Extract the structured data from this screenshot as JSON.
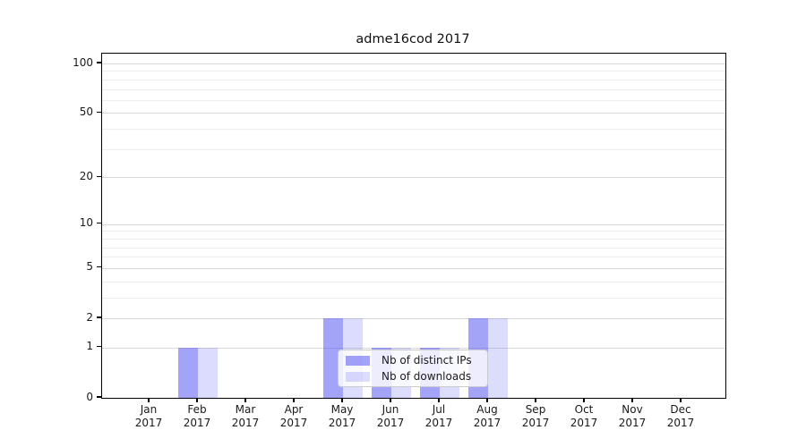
{
  "chart_data": {
    "type": "bar",
    "title": "adme16cod 2017",
    "categories": [
      "Jan",
      "Feb",
      "Mar",
      "Apr",
      "May",
      "Jun",
      "Jul",
      "Aug",
      "Sep",
      "Oct",
      "Nov",
      "Dec"
    ],
    "x_year": "2017",
    "series": [
      {
        "name": "Nb of distinct IPs",
        "color": "rgba(68,68,238,0.49)",
        "values": [
          0,
          1,
          0,
          0,
          2,
          1,
          1,
          2,
          0,
          0,
          0,
          0
        ]
      },
      {
        "name": "Nb of downloads",
        "color": "rgba(68,68,238,0.19)",
        "values": [
          0,
          1,
          0,
          0,
          2,
          1,
          1,
          2,
          0,
          0,
          0,
          0
        ]
      }
    ],
    "y_axis": {
      "scale": "log1p",
      "major_ticks": [
        0,
        1,
        2,
        5,
        10,
        20,
        50,
        100
      ],
      "minor_gridlines": [
        3,
        4,
        6,
        7,
        8,
        9,
        30,
        40,
        60,
        70,
        80,
        90
      ],
      "max": 100
    },
    "legend": {
      "position": "lower center"
    },
    "grid": true
  },
  "style": {
    "major_grid_color": "#d9d9d9",
    "minor_grid_color": "#ececec",
    "spine_color": "#000000",
    "background": "#ffffff",
    "text_color": "#1a1a1a"
  }
}
